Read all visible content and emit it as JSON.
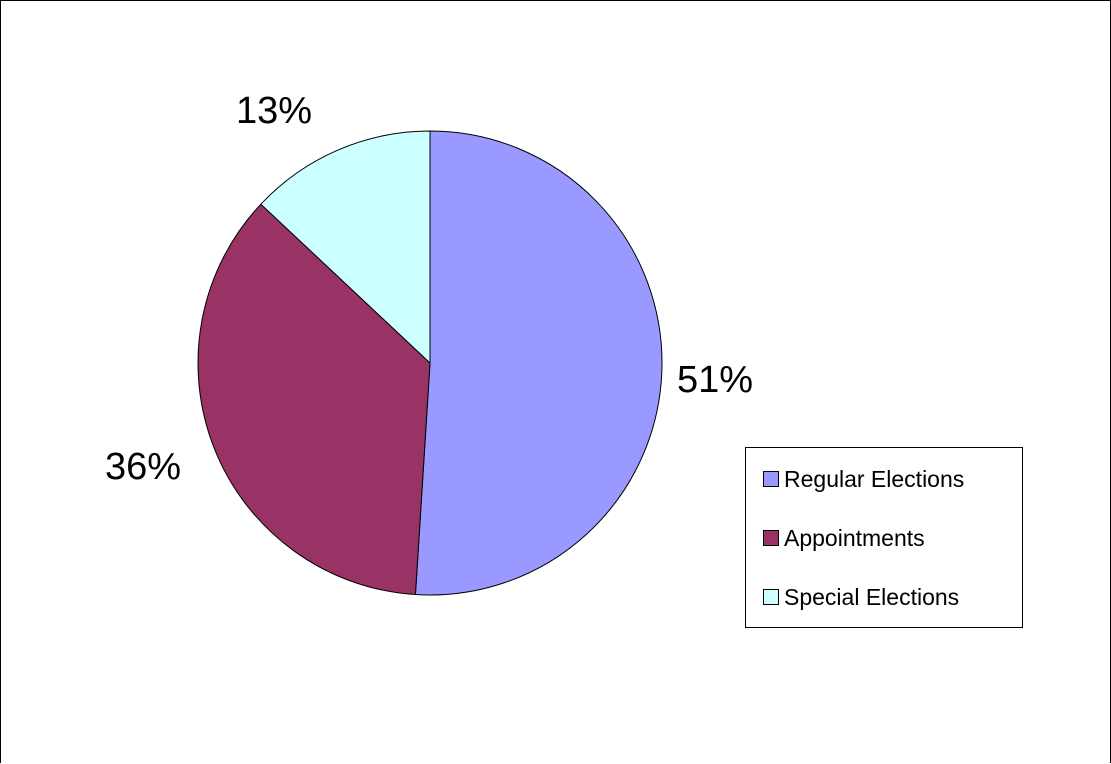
{
  "chart_data": {
    "type": "pie",
    "categories": [
      "Regular Elections",
      "Appointments",
      "Special Elections"
    ],
    "values": [
      51,
      36,
      13
    ],
    "value_labels": [
      "51%",
      "36%",
      "13%"
    ],
    "colors": [
      "#9999FF",
      "#993366",
      "#CCFFFF"
    ],
    "start_angle": "12 o'clock",
    "direction": "clockwise",
    "legend": {
      "placement": "right",
      "items": [
        {
          "label": "Regular Elections",
          "color": "#9999FF"
        },
        {
          "label": "Appointments",
          "color": "#993366"
        },
        {
          "label": "Special Elections",
          "color": "#CCFFFF"
        }
      ]
    }
  }
}
